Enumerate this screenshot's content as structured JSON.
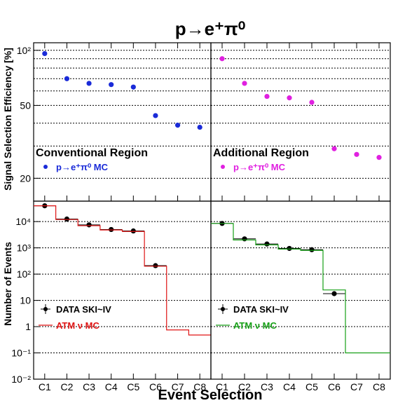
{
  "figure": {
    "title": "p→e⁺π⁰",
    "xlabel": "Event Selection"
  },
  "chart_data": [
    {
      "panel": "efficiency-left",
      "type": "scatter",
      "region_label": "Conventional Region",
      "ylabel": "Signal Selection Efficiency [%]",
      "yscale": "log",
      "ylim": [
        15,
        110
      ],
      "yticks": [
        {
          "v": 20,
          "label": "20"
        },
        {
          "v": 50,
          "label": "50"
        },
        {
          "v": 100,
          "label": "10²"
        }
      ],
      "grid": true,
      "legend": "top-left",
      "categories": [
        "C1",
        "C2",
        "C3",
        "C4",
        "C5",
        "C6",
        "C7",
        "C8"
      ],
      "series": [
        {
          "name": "p→e⁺π⁰ MC",
          "color": "#1a2bd8",
          "values": [
            96,
            70,
            66,
            65,
            63,
            44,
            39,
            38
          ]
        }
      ]
    },
    {
      "panel": "efficiency-right",
      "type": "scatter",
      "region_label": "Additional Region",
      "yscale": "log",
      "ylim": [
        15,
        110
      ],
      "grid": true,
      "legend": "top-left",
      "categories": [
        "C1",
        "C2",
        "C3",
        "C4",
        "C5",
        "C6",
        "C7",
        "C8"
      ],
      "series": [
        {
          "name": "p→e⁺π⁰ MC",
          "color": "#e020e0",
          "values": [
            90,
            66,
            56,
            55,
            52,
            29,
            27,
            26
          ]
        }
      ]
    },
    {
      "panel": "events-left",
      "type": "line",
      "ylabel": "Number of Events",
      "yscale": "log",
      "ylim": [
        0.01,
        60000
      ],
      "yticks": [
        {
          "v": 0.01,
          "label": "10⁻²"
        },
        {
          "v": 0.1,
          "label": "10⁻¹"
        },
        {
          "v": 1,
          "label": "1"
        },
        {
          "v": 10,
          "label": "10"
        },
        {
          "v": 100,
          "label": "10²"
        },
        {
          "v": 1000,
          "label": "10³"
        },
        {
          "v": 10000,
          "label": "10⁴"
        }
      ],
      "grid": true,
      "legend": "bottom-left",
      "categories": [
        "C1",
        "C2",
        "C3",
        "C4",
        "C5",
        "C6",
        "C7",
        "C8"
      ],
      "series": [
        {
          "name": "DATA SKI~IV",
          "kind": "points",
          "color": "#000000",
          "values": [
            40000,
            12500,
            7500,
            5000,
            4400,
            210,
            null,
            null
          ]
        },
        {
          "name": "ATM ν MC",
          "kind": "step",
          "color": "#e01515",
          "values": [
            40000,
            12000,
            7000,
            4800,
            4200,
            200,
            0.75,
            0.48
          ]
        }
      ]
    },
    {
      "panel": "events-right",
      "type": "line",
      "yscale": "log",
      "ylim": [
        0.01,
        60000
      ],
      "grid": true,
      "legend": "bottom-left",
      "categories": [
        "C1",
        "C2",
        "C3",
        "C4",
        "C5",
        "C6",
        "C7",
        "C8"
      ],
      "series": [
        {
          "name": "DATA SKI~IV",
          "kind": "points",
          "color": "#000000",
          "values": [
            8500,
            2200,
            1400,
            950,
            850,
            18,
            null,
            null
          ]
        },
        {
          "name": "ATM ν MC",
          "kind": "step",
          "color": "#17a017",
          "values": [
            8500,
            2000,
            1300,
            900,
            800,
            25,
            0.1,
            0.1
          ]
        }
      ]
    }
  ]
}
